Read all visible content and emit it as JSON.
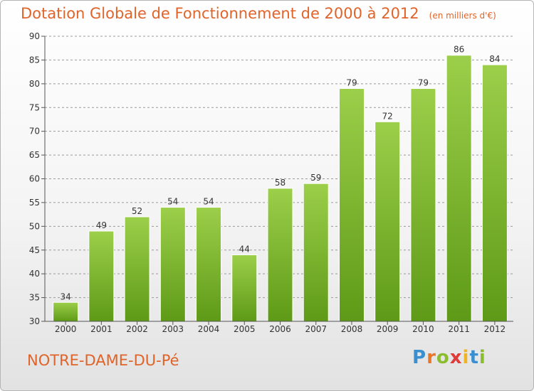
{
  "title": "Dotation Globale de Fonctionnement de 2000 à 2012",
  "subtitle": "(en milliers d'€)",
  "commune": "NOTRE-DAME-DU-Pé",
  "brand": {
    "letters": [
      "P",
      "r",
      "o",
      "x",
      "i",
      "t",
      "i"
    ],
    "colors": [
      "#3a8fd0",
      "#e8762b",
      "#8bbd2f",
      "#e03a3a",
      "#f0b323",
      "#3a8fd0",
      "#8bbd2f"
    ]
  },
  "colors": {
    "title": "#e0642a",
    "bar_top": "#9ccf4a",
    "bar_bottom": "#5e9a17",
    "grid": "#9a9a9a"
  },
  "chart_data": {
    "type": "bar",
    "categories": [
      "2000",
      "2001",
      "2002",
      "2003",
      "2004",
      "2005",
      "2006",
      "2007",
      "2008",
      "2009",
      "2010",
      "2011",
      "2012"
    ],
    "values": [
      34,
      49,
      52,
      54,
      54,
      44,
      58,
      59,
      79,
      72,
      79,
      86,
      84
    ],
    "data_labels": [
      "34",
      "49",
      "52",
      "54",
      "54",
      "44",
      "58",
      "59",
      "79",
      "72",
      "79",
      "86",
      "84"
    ],
    "yticks": [
      "30",
      "35",
      "40",
      "45",
      "50",
      "55",
      "60",
      "65",
      "70",
      "75",
      "80",
      "85",
      "90"
    ],
    "ylim": [
      30,
      90
    ],
    "grid": true,
    "xlabel": "",
    "ylabel": ""
  }
}
